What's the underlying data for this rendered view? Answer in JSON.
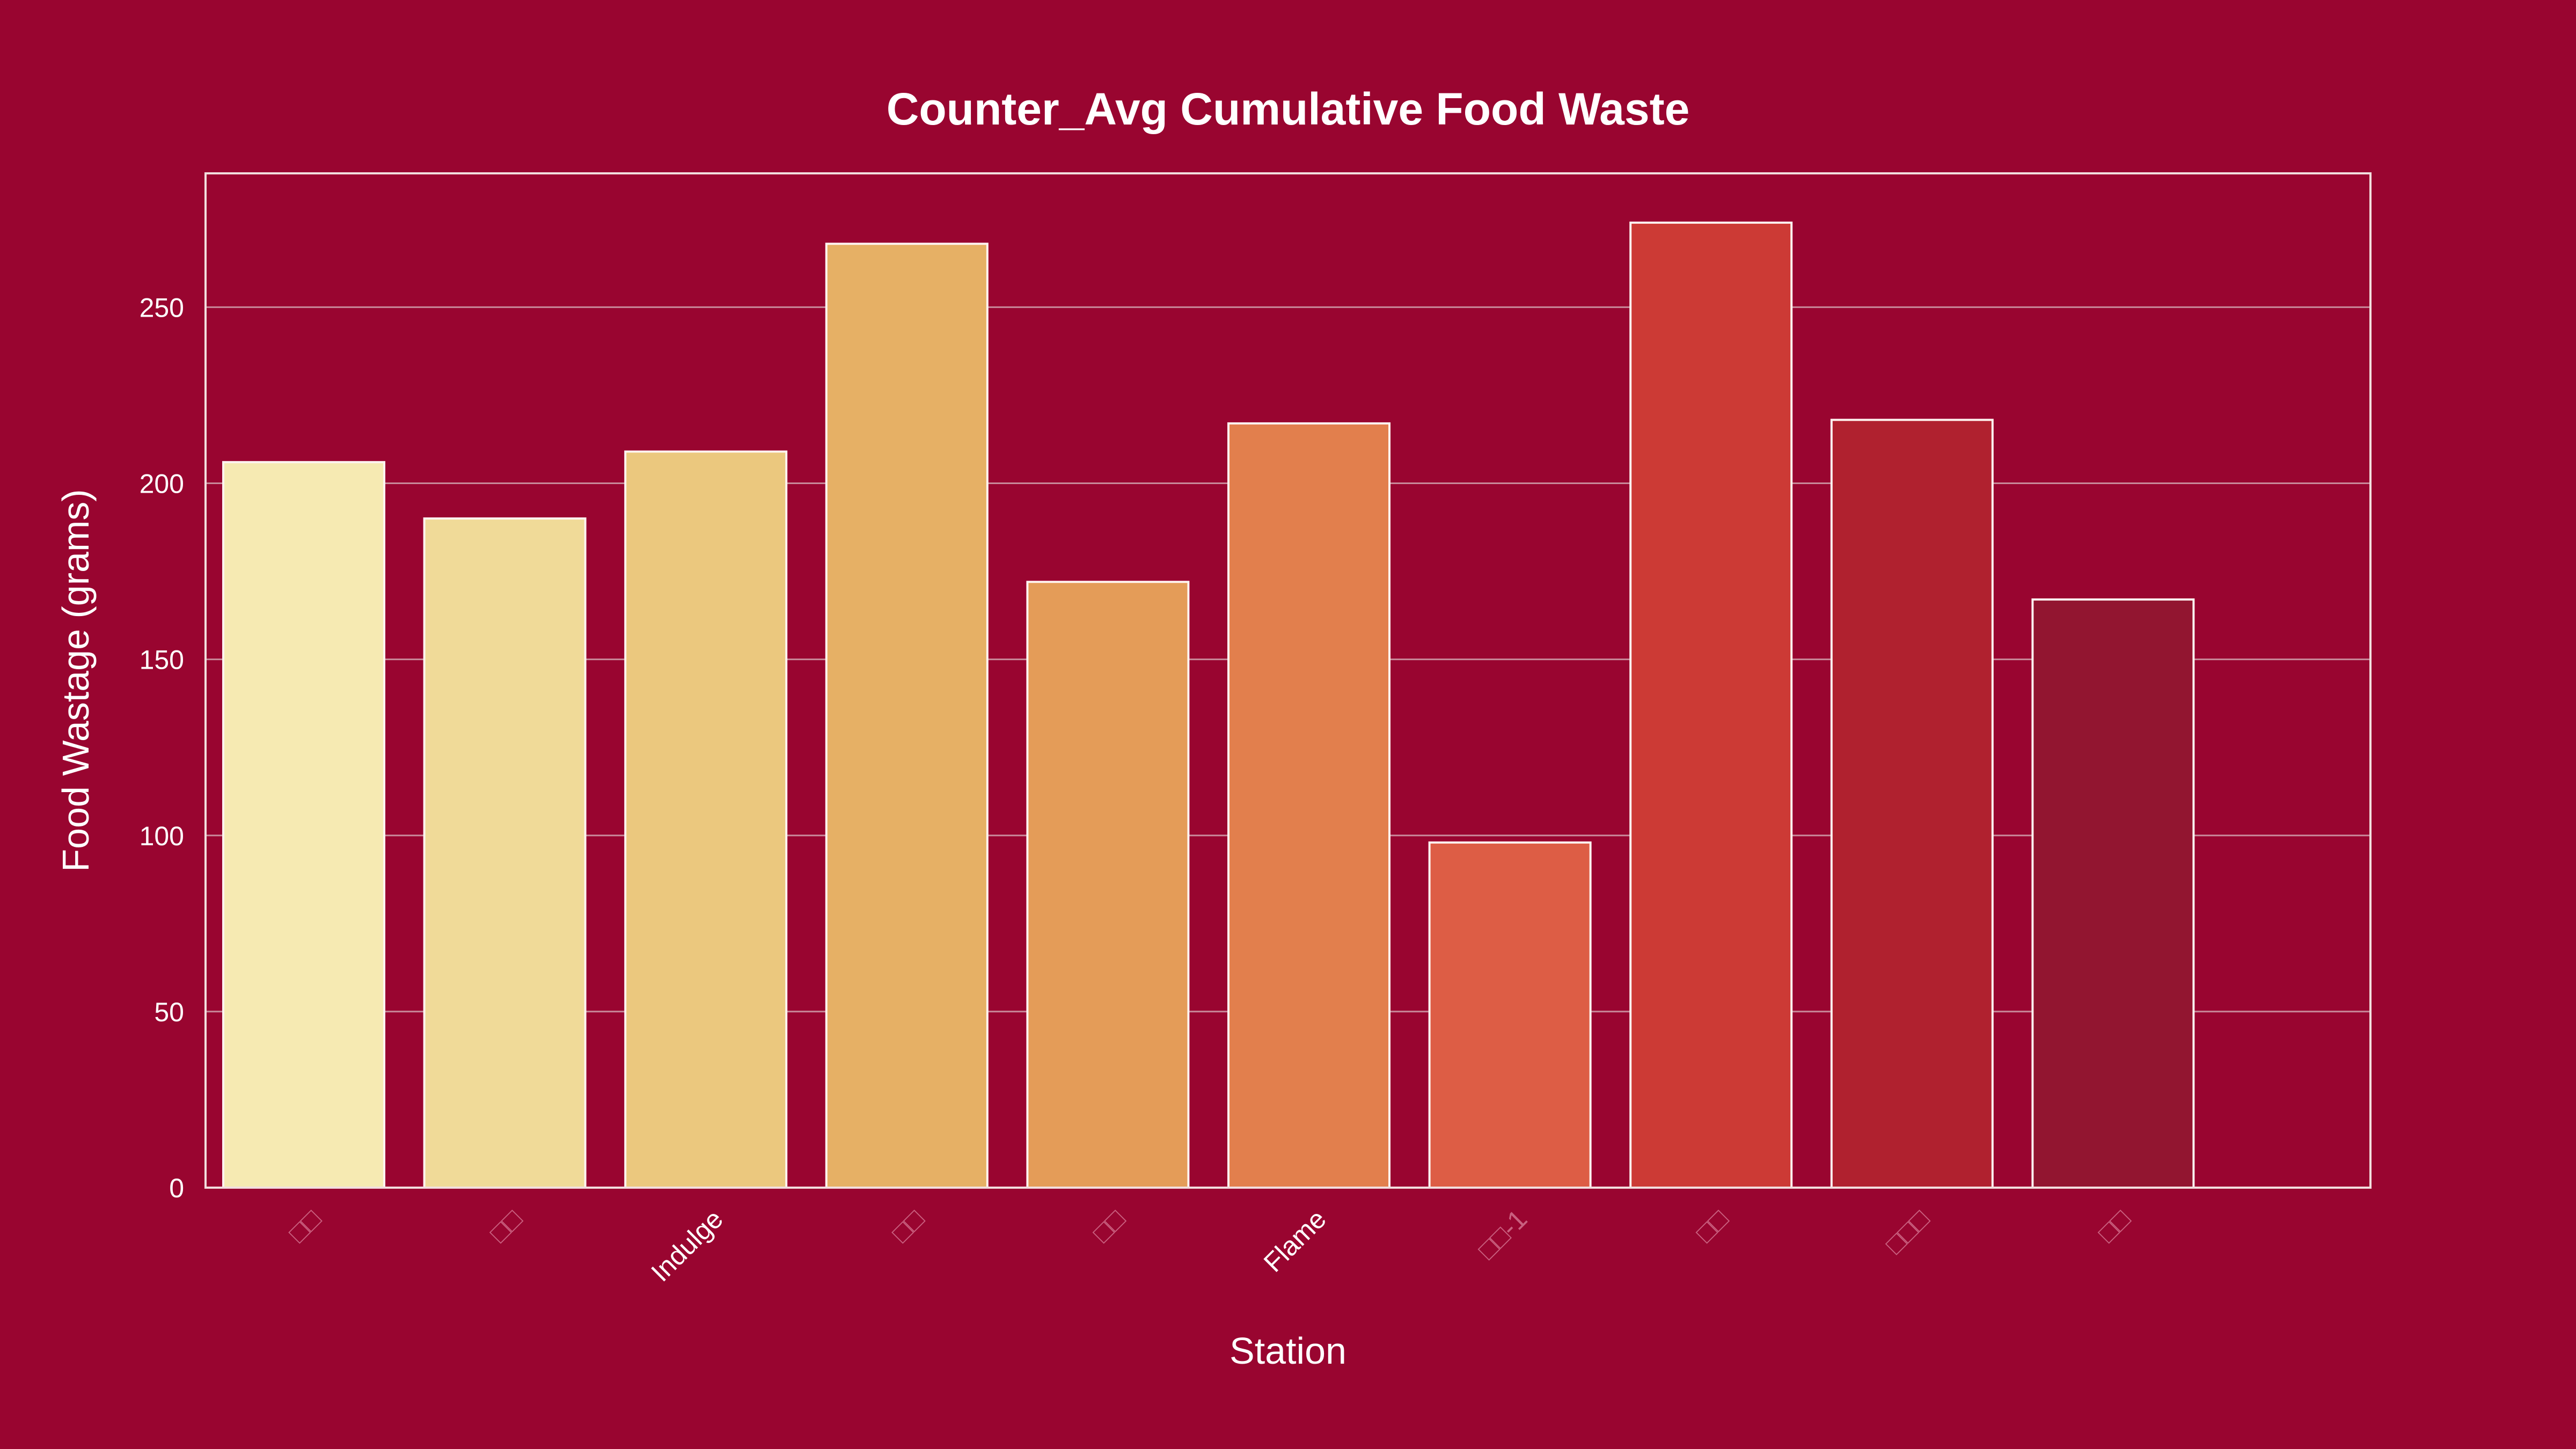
{
  "colors": {
    "background": "#990530",
    "plot_border": "#f2dede",
    "grid": "#c98a9a",
    "text": "#ffffff",
    "tick_text_dim": "#c9607f"
  },
  "chart_data": {
    "type": "bar",
    "title": "Counter_Avg Cumulative Food Waste",
    "xlabel": "Station",
    "ylabel": "Food Wastage (grams)",
    "ylim": [
      0,
      288
    ],
    "yticks": [
      0,
      50,
      100,
      150,
      200,
      250
    ],
    "grid": true,
    "categories": [
      "□□",
      "□□",
      "Indulge",
      "□□",
      "□□",
      "Flame",
      "□□-1",
      "□□",
      "□□□",
      "□□"
    ],
    "category_text_visible": [
      false,
      false,
      true,
      false,
      false,
      true,
      false,
      false,
      false,
      false
    ],
    "values": [
      206,
      190,
      209,
      268,
      172,
      217,
      98,
      274,
      218,
      167
    ],
    "bar_colors": [
      "#f6eab2",
      "#f0da98",
      "#ebc87e",
      "#e6b065",
      "#e49c58",
      "#e27f4d",
      "#dd5d45",
      "#cc3a35",
      "#b0212f",
      "#921530"
    ]
  }
}
